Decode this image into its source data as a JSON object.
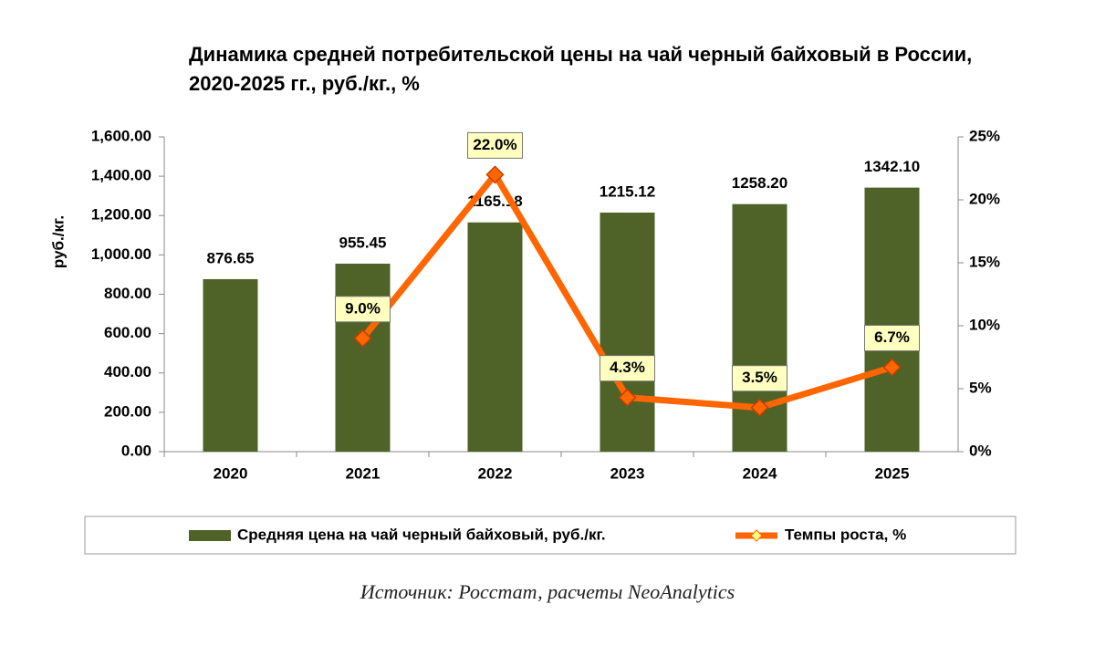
{
  "chart_data": {
    "type": "bar",
    "title": "Динамика средней потребительской цены на чай черный байховый в России, 2020-2025 гг., руб./кг., %",
    "y_label": "руб./кг.",
    "source": "Источник: Росстат, расчеты NeoAnalytics",
    "categories": [
      "2020",
      "2021",
      "2022",
      "2023",
      "2024",
      "2025"
    ],
    "series": [
      {
        "name": "Средняя цена на чай черный байховый, руб./кг.",
        "type": "bar",
        "color": "#4f6228",
        "values": [
          876.65,
          955.45,
          1165.18,
          1215.12,
          1258.2,
          1342.1
        ],
        "value_labels": [
          "876.65",
          "955.45",
          "1165.18",
          "1215.12",
          "1258.20",
          "1342.10"
        ]
      },
      {
        "name": "Темпы роста, %",
        "type": "line",
        "axis": "y2",
        "color": "#ff6600",
        "values": [
          null,
          9.0,
          22.0,
          4.3,
          3.5,
          6.7
        ],
        "value_labels": [
          null,
          "9.0%",
          "22.0%",
          "4.3%",
          "3.5%",
          "6.7%"
        ]
      }
    ],
    "ylim": [
      0,
      1600
    ],
    "yticks": [
      {
        "value": 0,
        "label": "0.00"
      },
      {
        "value": 200,
        "label": "200.00"
      },
      {
        "value": 400,
        "label": "400.00"
      },
      {
        "value": 600,
        "label": "600.00"
      },
      {
        "value": 800,
        "label": "800.00"
      },
      {
        "value": 1000,
        "label": "1,000.00"
      },
      {
        "value": 1200,
        "label": "1,200.00"
      },
      {
        "value": 1400,
        "label": "1,400.00"
      },
      {
        "value": 1600,
        "label": "1,600.00"
      }
    ],
    "y2lim": [
      0,
      25
    ],
    "y2ticks": [
      {
        "value": 0,
        "label": "0%"
      },
      {
        "value": 5,
        "label": "5%"
      },
      {
        "value": 10,
        "label": "10%"
      },
      {
        "value": 15,
        "label": "15%"
      },
      {
        "value": 20,
        "label": "20%"
      },
      {
        "value": 25,
        "label": "25%"
      }
    ],
    "legend": "bottom"
  }
}
